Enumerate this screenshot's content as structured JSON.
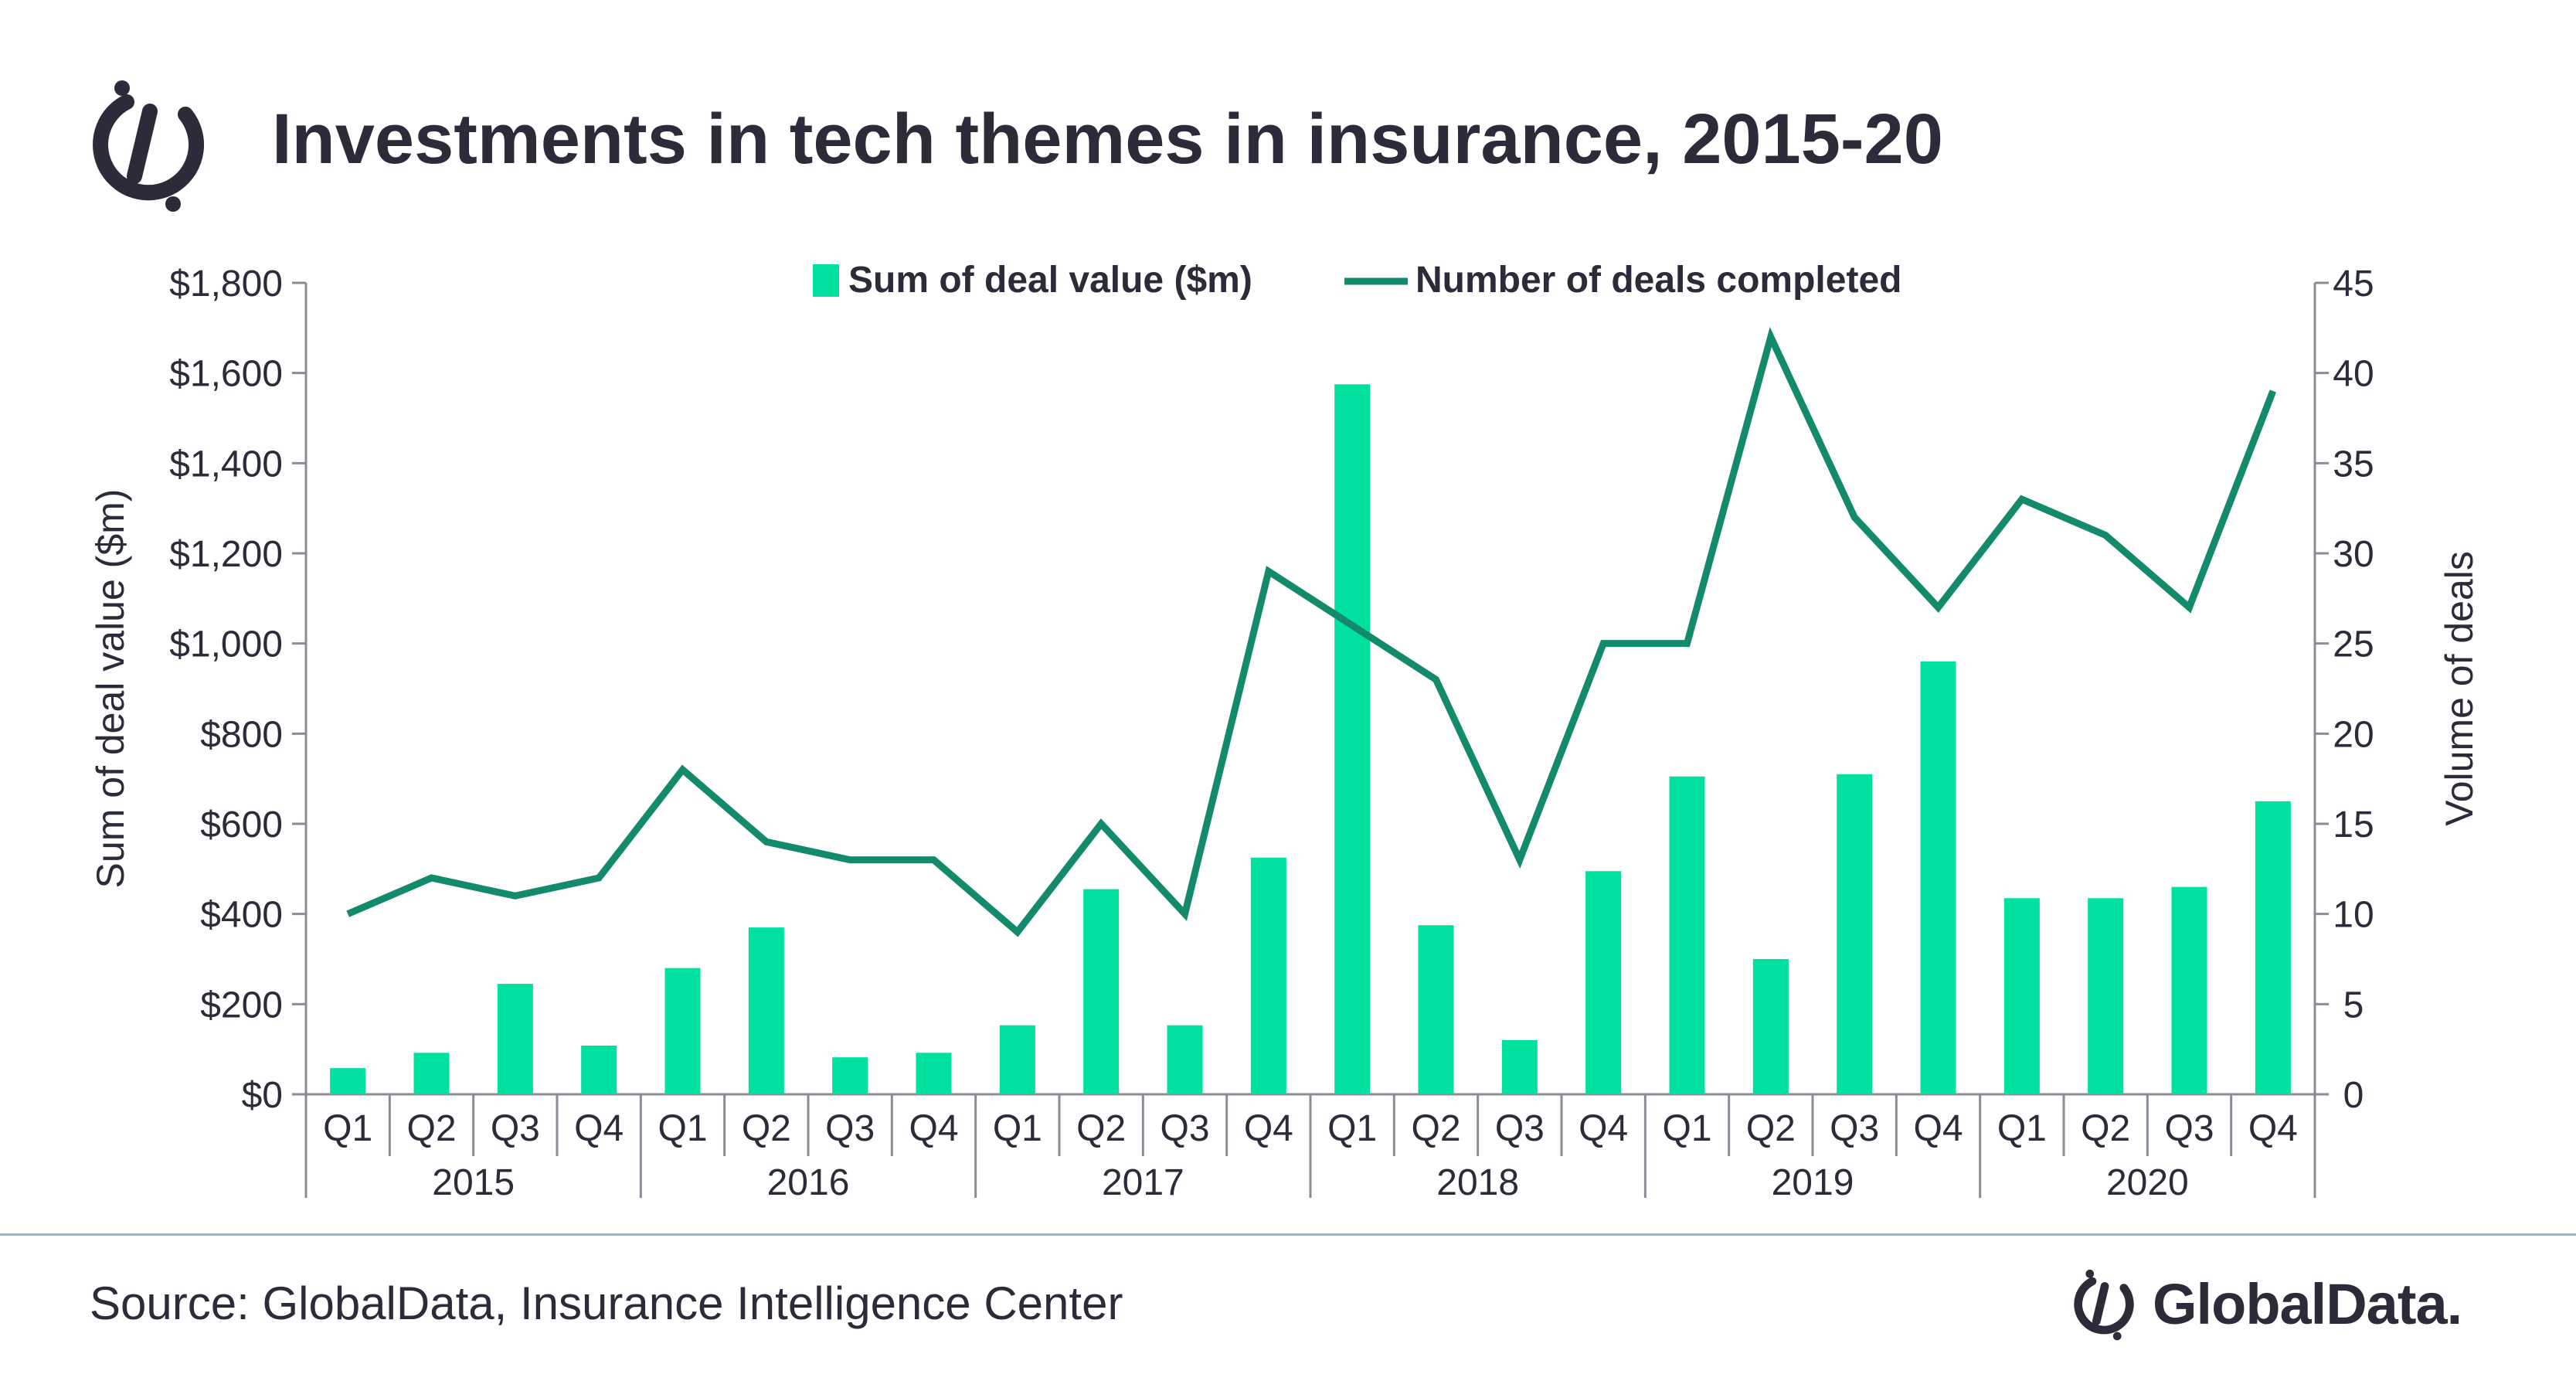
{
  "header": {
    "title": "Investments in tech themes in insurance, 2015-20",
    "logo_icon": "globaldata-mark-icon"
  },
  "footer": {
    "source": "Source: GlobalData, Insurance Intelligence Center",
    "brand": "GlobalData."
  },
  "colors": {
    "bar": "#00e0a0",
    "line": "#148a6c",
    "text": "#2b2b3a",
    "axis": "#8c8c96"
  },
  "chart_data": {
    "type": "bar+line",
    "title": "Investments in tech themes in insurance, 2015-20",
    "ylabel": "Sum of deal value ($m)",
    "y2label": "Volume of deals",
    "ylim": [
      0,
      1800
    ],
    "y2lim": [
      0,
      45
    ],
    "yticks": [
      "$0",
      "$200",
      "$400",
      "$600",
      "$800",
      "$1,000",
      "$1,200",
      "$1,400",
      "$1,600",
      "$1,800"
    ],
    "y2ticks": [
      "0",
      "5",
      "10",
      "15",
      "20",
      "25",
      "30",
      "35",
      "40",
      "45"
    ],
    "grid": false,
    "legend_position": "top-center",
    "years": [
      "2015",
      "2016",
      "2017",
      "2018",
      "2019",
      "2020"
    ],
    "categories": [
      "Q1",
      "Q2",
      "Q3",
      "Q4",
      "Q1",
      "Q2",
      "Q3",
      "Q4",
      "Q1",
      "Q2",
      "Q3",
      "Q4",
      "Q1",
      "Q2",
      "Q3",
      "Q4",
      "Q1",
      "Q2",
      "Q3",
      "Q4",
      "Q1",
      "Q2",
      "Q3",
      "Q4"
    ],
    "series": [
      {
        "name": "Sum of deal value ($m)",
        "type": "bar",
        "axis": "left",
        "values": [
          58,
          92,
          245,
          108,
          280,
          370,
          82,
          92,
          153,
          455,
          153,
          525,
          1575,
          375,
          120,
          495,
          705,
          300,
          710,
          960,
          435,
          435,
          460,
          650
        ]
      },
      {
        "name": "Number of deals completed",
        "type": "line",
        "axis": "right",
        "values": [
          10,
          12,
          11,
          12,
          18,
          14,
          13,
          13,
          9,
          15,
          10,
          29,
          26,
          23,
          13,
          25,
          25,
          42,
          32,
          27,
          33,
          31,
          27,
          39
        ]
      }
    ]
  }
}
